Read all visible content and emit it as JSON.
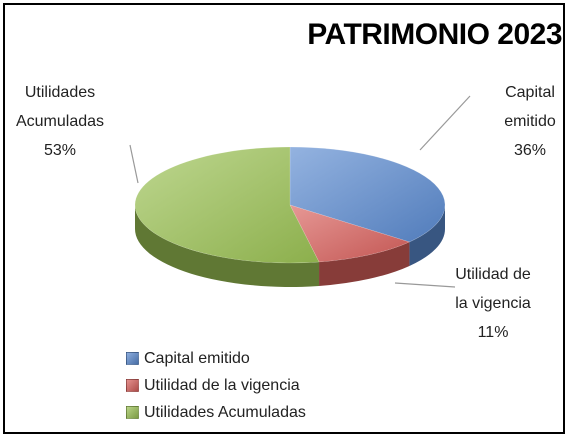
{
  "chart_data": {
    "type": "pie",
    "title": "PATRIMONIO 2023",
    "categories": [
      "Capital emitido",
      "Utilidad de la vigencia",
      "Utilidades Acumuladas"
    ],
    "values": [
      36,
      11,
      53
    ],
    "value_labels": [
      "36%",
      "11%",
      "53%"
    ],
    "colors": [
      "#5a8ad0",
      "#d9605c",
      "#9bc254"
    ],
    "legend": "bottom-left"
  }
}
